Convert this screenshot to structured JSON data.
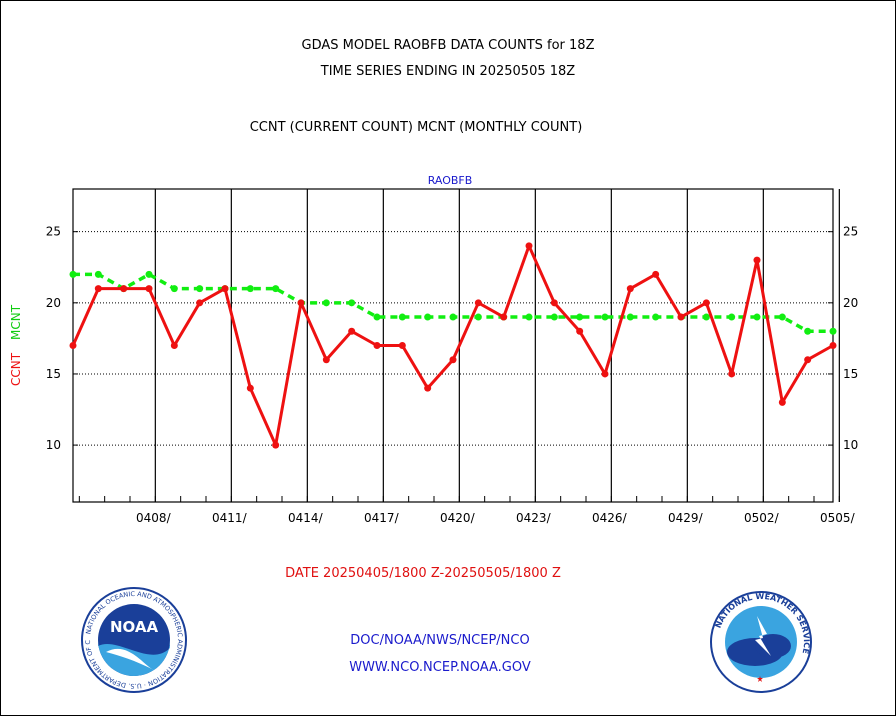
{
  "header": {
    "title_line1": "GDAS MODEL RAOBFB DATA COUNTS for 18Z",
    "title_line2": "TIME SERIES ENDING IN 20250505 18Z",
    "subtitle": "CCNT (CURRENT COUNT) MCNT (MONTHLY COUNT)"
  },
  "chart_data": {
    "type": "line",
    "title": "RAOBFB",
    "ylabel_primary": "CCNT",
    "ylabel_secondary": "MCNT",
    "ylim": [
      6,
      28
    ],
    "yticks": [
      10,
      15,
      20,
      25
    ],
    "x_tick_labels": [
      "0408/",
      "0411/",
      "0414/",
      "0417/",
      "0420/",
      "0423/",
      "0426/",
      "0429/",
      "0502/",
      "0505/"
    ],
    "x_days": [
      "0405",
      "0406",
      "0407",
      "0408",
      "0409",
      "0410",
      "0411",
      "0412",
      "0413",
      "0414",
      "0415",
      "0416",
      "0417",
      "0418",
      "0419",
      "0420",
      "0421",
      "0422",
      "0423",
      "0424",
      "0425",
      "0426",
      "0427",
      "0428",
      "0429",
      "0430",
      "0501",
      "0502",
      "0503",
      "0504",
      "0505"
    ],
    "grid": true,
    "series": [
      {
        "name": "CCNT",
        "color": "#ee1111",
        "style": "solid",
        "values": [
          17,
          21,
          21,
          21,
          17,
          20,
          21,
          14,
          10,
          20,
          16,
          18,
          17,
          17,
          14,
          16,
          20,
          19,
          24,
          20,
          18,
          15,
          21,
          22,
          19,
          20,
          15,
          23,
          13,
          16,
          17
        ]
      },
      {
        "name": "MCNT",
        "color": "#11ee11",
        "style": "dashed",
        "values": [
          22,
          22,
          21,
          22,
          21,
          21,
          21,
          21,
          21,
          20,
          20,
          20,
          19,
          19,
          19,
          19,
          19,
          19,
          19,
          19,
          19,
          19,
          19,
          19,
          19,
          19,
          19,
          19,
          19,
          18,
          18
        ]
      }
    ]
  },
  "footer": {
    "date_range": "DATE 20250405/1800 Z-20250505/1800 Z",
    "org_path": "DOC/NOAA/NWS/NCEP/NCO",
    "website": "WWW.NCO.NCEP.NOAA.GOV",
    "noaa_logo_text": "NOAA",
    "noaa_ring_text": "NATIONAL OCEANIC AND ATMOSPHERIC ADMINISTRATION · U.S. DEPARTMENT OF COMMERCE",
    "nws_ring_text": "NATIONAL WEATHER SERVICE"
  }
}
